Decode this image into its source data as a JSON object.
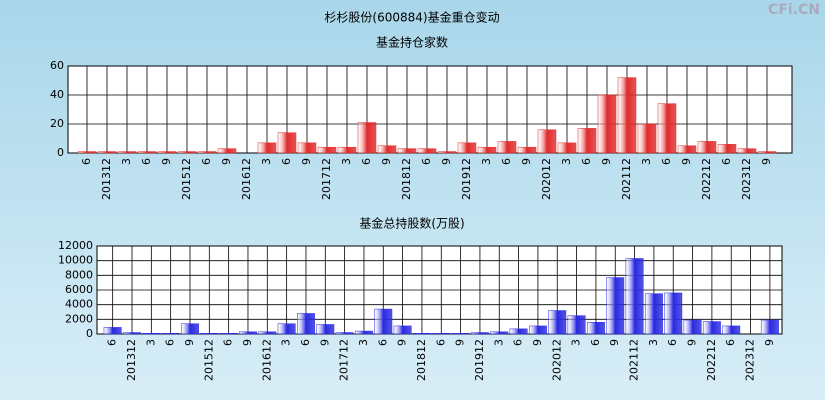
{
  "watermark": "CFi.CN",
  "chart_data": [
    {
      "type": "bar",
      "title": "杉杉股份(600884)基金重仓变动",
      "subtitle": "基金持仓家数",
      "categories": [
        "6",
        "201312",
        "3",
        "6",
        "9",
        "201512",
        "6",
        "9",
        "201612",
        "3",
        "6",
        "9",
        "201712",
        "3",
        "6",
        "9",
        "201812",
        "6",
        "9",
        "201912",
        "3",
        "6",
        "9",
        "202012",
        "3",
        "6",
        "9",
        "202112",
        "3",
        "6",
        "9",
        "202212",
        "6",
        "202312",
        "9"
      ],
      "values": [
        1,
        1,
        1,
        1,
        1,
        1,
        1,
        3,
        0,
        7,
        14,
        7,
        4,
        4,
        21,
        5,
        3,
        3,
        1,
        7,
        4,
        8,
        4,
        16,
        7,
        17,
        40,
        52,
        20,
        34,
        5,
        8,
        6,
        3,
        1
      ],
      "color": "#e02a2a",
      "ylim": [
        0,
        60
      ],
      "yticks": [
        0,
        20,
        40,
        60
      ],
      "grid": true
    },
    {
      "type": "bar",
      "subtitle": "基金总持股数(万股)",
      "categories": [
        "6",
        "201312",
        "3",
        "6",
        "9",
        "201512",
        "6",
        "9",
        "201612",
        "3",
        "6",
        "9",
        "201712",
        "3",
        "6",
        "9",
        "201812",
        "6",
        "9",
        "201912",
        "3",
        "6",
        "9",
        "202012",
        "3",
        "6",
        "9",
        "202112",
        "3",
        "6",
        "9",
        "202212",
        "6",
        "202312",
        "9"
      ],
      "values": [
        900,
        200,
        100,
        100,
        1400,
        100,
        100,
        300,
        300,
        1400,
        2800,
        1300,
        200,
        400,
        3400,
        1100,
        100,
        100,
        100,
        200,
        300,
        700,
        1100,
        3200,
        2500,
        1600,
        7700,
        10300,
        5500,
        5600,
        1900,
        1700,
        1100,
        0,
        1900
      ],
      "color": "#2a2ae0",
      "ylim": [
        0,
        12000
      ],
      "yticks": [
        0,
        2000,
        4000,
        6000,
        8000,
        10000,
        12000
      ],
      "grid": true
    }
  ]
}
